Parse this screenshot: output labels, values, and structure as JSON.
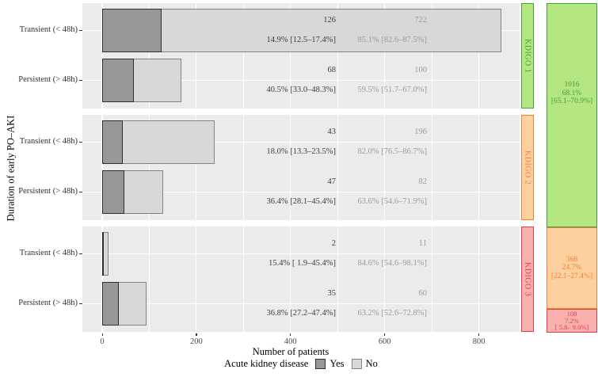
{
  "chart_data": {
    "type": "bar",
    "stacked": true,
    "orientation": "horizontal",
    "title": "",
    "xlabel": "Number of patients",
    "ylabel": "Duration of early PO–AKI",
    "x_ticks": [
      0,
      200,
      400,
      600,
      800
    ],
    "xlim": [
      -42,
      890
    ],
    "grid": true,
    "legend": {
      "title": "Acute kidney disease",
      "position": "bottom",
      "items": [
        {
          "label": "Yes"
        },
        {
          "label": "No"
        }
      ]
    },
    "facets": [
      {
        "label": "KDIGO 1",
        "rows": [
          {
            "category": "Transient (< 48h)",
            "yes_count": 126,
            "no_count": 722,
            "yes_pct": "14.9% [12.5–17.4%]",
            "no_pct": "85.1% [82.6–87.5%]"
          },
          {
            "category": "Persistent (> 48h)",
            "yes_count": 68,
            "no_count": 100,
            "yes_pct": "40.5% [33.0–48.3%]",
            "no_pct": "59.5% [51.7–67.0%]"
          }
        ]
      },
      {
        "label": "KDIGO 2",
        "rows": [
          {
            "category": "Transient (< 48h)",
            "yes_count": 43,
            "no_count": 196,
            "yes_pct": "18.0% [13.3–23.5%]",
            "no_pct": "82.0% [76.5–86.7%]"
          },
          {
            "category": "Persistent (> 48h)",
            "yes_count": 47,
            "no_count": 82,
            "yes_pct": "36.4% [28.1–45.4%]",
            "no_pct": "63.6% [54.6–71.9%]"
          }
        ]
      },
      {
        "label": "KDIGO 3",
        "rows": [
          {
            "category": "Transient (< 48h)",
            "yes_count": 2,
            "no_count": 11,
            "yes_pct": "15.4% [ 1.9–45.4%]",
            "no_pct": "84.6% [54.6–98.1%]"
          },
          {
            "category": "Persistent (> 48h)",
            "yes_count": 35,
            "no_count": 60,
            "yes_pct": "36.8% [27.2–47.4%]",
            "no_pct": "63.2% [52.6–72.8%]"
          }
        ]
      }
    ],
    "totals_column": [
      {
        "label": "KDIGO 1",
        "count": 1016,
        "pct": "68.1%",
        "ci": "[65.1–70.9%]"
      },
      {
        "label": "KDIGO 2",
        "count": 368,
        "pct": "24.7%",
        "ci": "[22.1–27.4%]"
      },
      {
        "label": "KDIGO 3",
        "count": 108,
        "pct": "7.2%",
        "ci": "[ 5.8– 9.0%]"
      }
    ],
    "colors": {
      "panel_bg": "#ebebeb",
      "yes_fill": "#989898",
      "yes_border": "#2f2f2f",
      "no_fill": "#d8d8d8",
      "no_border": "#848484",
      "yes_text": "#3e3e3e",
      "no_text": "#9d9d9d",
      "facet_fills": [
        "#b4e681",
        "#fdd0a0",
        "#f9b1b0"
      ],
      "facet_accents": [
        "#44a13c",
        "#f08138",
        "#dd4040"
      ]
    }
  }
}
